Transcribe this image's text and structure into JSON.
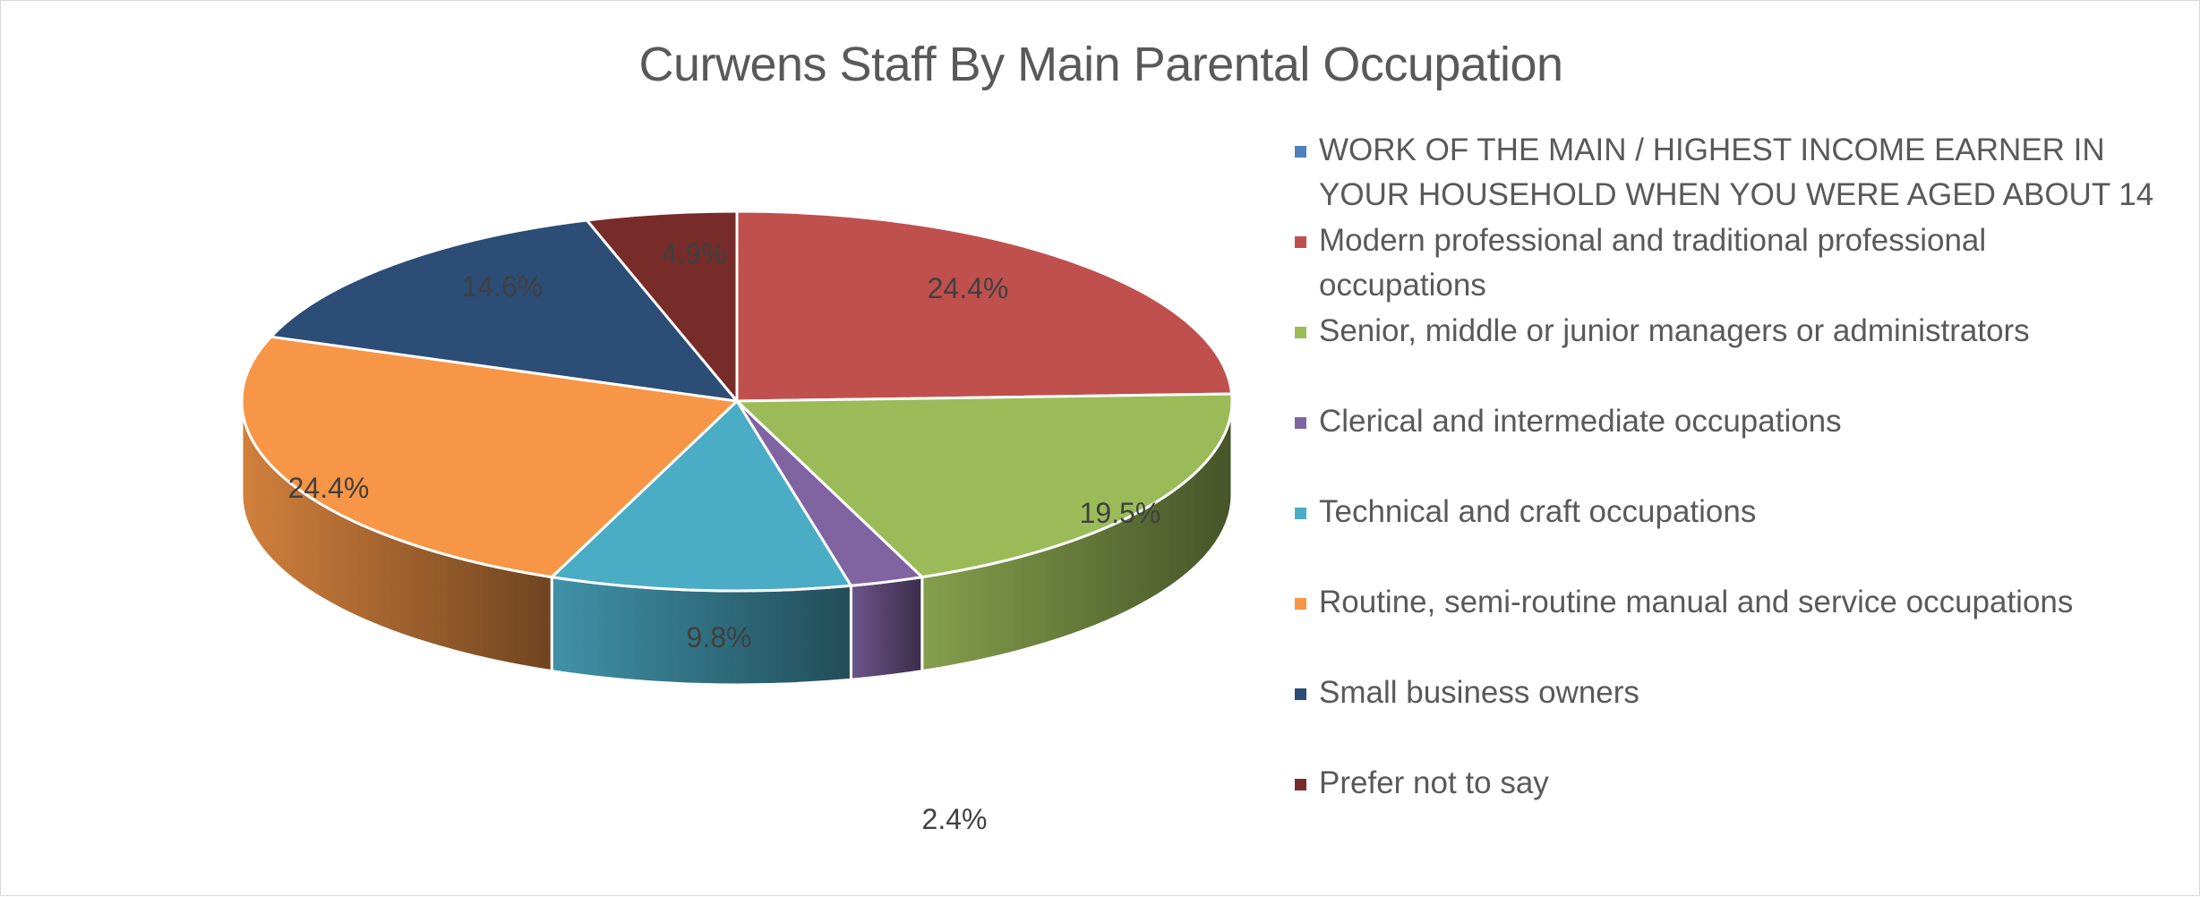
{
  "chart_data": {
    "type": "pie",
    "variant": "3d-pie",
    "title": "Curwens Staff By Main Parental Occupation",
    "legend_position": "right",
    "legend_header": "WORK OF THE MAIN / HIGHEST INCOME EARNER IN YOUR HOUSEHOLD WHEN YOU WERE AGED ABOUT 14",
    "categories": [
      "Modern professional and traditional professional occupations",
      "Senior, middle or junior managers or administrators",
      "Clerical and intermediate occupations",
      "Technical and craft occupations",
      "Routine, semi-routine manual and service occupations",
      "Small business owners",
      "Prefer not to say"
    ],
    "values": [
      24.4,
      19.5,
      2.4,
      9.8,
      24.4,
      14.6,
      4.9
    ],
    "labels": [
      "24.4%",
      "19.5%",
      "2.4%",
      "9.8%",
      "24.4%",
      "14.6%",
      "4.9%"
    ],
    "colors": [
      "#C0504D",
      "#9BBB59",
      "#8064A2",
      "#4BACC6",
      "#F79646",
      "#2C4D75",
      "#772C2A"
    ],
    "unit": "%"
  },
  "legend": [
    {
      "label": "WORK OF THE MAIN / HIGHEST INCOME EARNER IN YOUR HOUSEHOLD WHEN YOU WERE AGED ABOUT 14",
      "color": "#4F81BD"
    },
    {
      "label": "Modern professional and traditional professional occupations",
      "color": "#C0504D"
    },
    {
      "label": "Senior, middle or junior managers or administrators",
      "color": "#9BBB59"
    },
    {
      "label": "Clerical and intermediate occupations",
      "color": "#8064A2"
    },
    {
      "label": "Technical and craft occupations",
      "color": "#4BACC6"
    },
    {
      "label": "Routine, semi-routine manual and service occupations",
      "color": "#F79646"
    },
    {
      "label": "Small business owners",
      "color": "#2C4D75"
    },
    {
      "label": "Prefer not to say",
      "color": "#772C2A"
    }
  ]
}
